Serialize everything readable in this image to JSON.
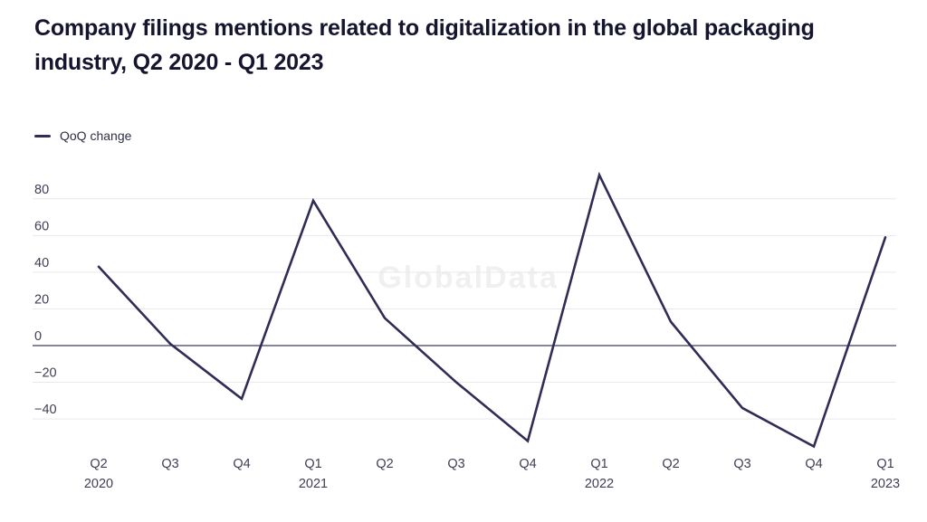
{
  "watermark": "GlobalData",
  "chart_data": {
    "type": "line",
    "title": "Company filings mentions related to digitalization in the global packaging industry, Q2 2020 - Q1 2023",
    "xlabel": "",
    "ylabel": "",
    "categories": [
      "Q2 2020",
      "Q3 2020",
      "Q4 2020",
      "Q1 2021",
      "Q2 2021",
      "Q3 2021",
      "Q4 2021",
      "Q1 2022",
      "Q2 2022",
      "Q3 2022",
      "Q4 2022",
      "Q1 2023"
    ],
    "x_tick_labels": [
      [
        "Q2",
        "2020"
      ],
      [
        "Q3"
      ],
      [
        "Q4"
      ],
      [
        "Q1",
        "2021"
      ],
      [
        "Q2"
      ],
      [
        "Q3"
      ],
      [
        "Q4"
      ],
      [
        "Q1",
        "2022"
      ],
      [
        "Q2"
      ],
      [
        "Q3"
      ],
      [
        "Q4"
      ],
      [
        "Q1",
        "2023"
      ]
    ],
    "series": [
      {
        "name": "QoQ change",
        "values": [
          43,
          1,
          -29,
          79,
          15,
          -20,
          -52,
          93,
          13,
          -34,
          -55,
          59
        ]
      }
    ],
    "y_ticks": [
      80,
      60,
      40,
      20,
      0,
      -20,
      -40
    ],
    "ylim": [
      -60,
      100
    ],
    "grid": true,
    "legend_position": "top-left",
    "colors": {
      "line": "#2f2c56",
      "grid": "#e9e9ec",
      "zero_line": "#3d3d5f",
      "tick_text": "#3e3e56",
      "title_text": "#15152f",
      "watermark_text": "#f0f0f0"
    }
  }
}
